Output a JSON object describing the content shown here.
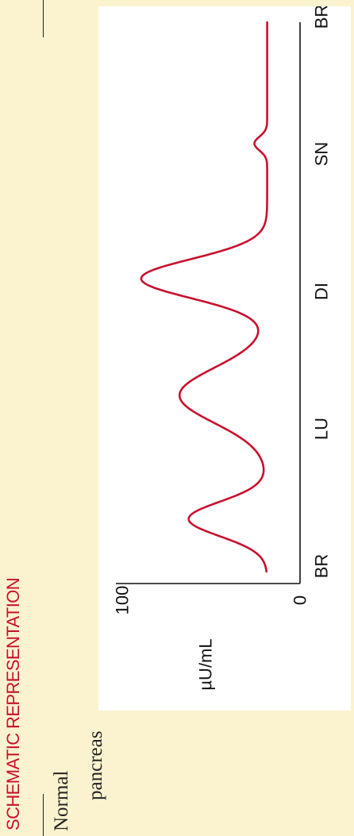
{
  "section_title": "SCHEMATIC REPRESENTATION",
  "label": {
    "line1": "Normal",
    "line2": "pancreas"
  },
  "colors": {
    "background": "#fbf3cf",
    "panel": "#ffffff",
    "curve": "#c8102e",
    "title": "#c8102e",
    "axis": "#111111"
  },
  "chart_data": {
    "type": "line",
    "title": "",
    "ylabel": "µU/mL",
    "xlabel": "",
    "ylim": [
      0,
      100
    ],
    "y_ticks": [
      "0",
      "100"
    ],
    "x_ticks": [
      {
        "label": "BR",
        "x": 0
      },
      {
        "label": "LU",
        "x": 6
      },
      {
        "label": "DI",
        "x": 12
      },
      {
        "label": "SN",
        "x": 18
      },
      {
        "label": "BR",
        "x": 24
      }
    ],
    "xlim": [
      0,
      24
    ],
    "series": [
      {
        "color": "#c8102e",
        "baseline": 18,
        "peaks": [
          {
            "x": 2.3,
            "y": 43,
            "width": 0.75
          },
          {
            "x": 7.7,
            "y": 48,
            "width": 1.2
          },
          {
            "x": 12.8,
            "y": 69,
            "width": 0.85
          },
          {
            "x": 18.7,
            "y": 7,
            "width": 0.3
          }
        ]
      }
    ]
  }
}
